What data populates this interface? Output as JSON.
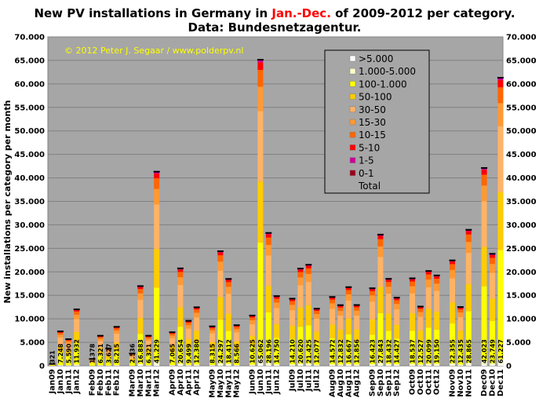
{
  "chart_data": {
    "type": "bar",
    "title_parts": [
      "New PV installations in Germany in ",
      "Jan.-Dec.",
      " of 2009-2012 per category."
    ],
    "subtitle": "Data: Bundesnetzagentur.",
    "ylabel": "New installations per category per month",
    "copyright": "© 2012 Peter J. Segaar / www.polderpv.nl",
    "ylim": [
      0,
      70000
    ],
    "y_ticks": [
      "0",
      "5.000",
      "10.000",
      "15.000",
      "20.000",
      "25.000",
      "30.000",
      "35.000",
      "40.000",
      "45.000",
      "50.000",
      "55.000",
      "60.000",
      "65.000",
      "70.000"
    ],
    "grid": true,
    "stacked": true,
    "legend_position": "top-right",
    "colors": {
      "plot_bg": "#a6a6a6",
      "title_highlight": "#ff0000",
      "categories": [
        "#ffffff",
        "#ffffcc",
        "#ffff00",
        "#ffcc00",
        "#ffb366",
        "#ff9933",
        "#ff6600",
        "#ff0000",
        "#cc0099",
        "#99001a",
        "#000000"
      ]
    },
    "legend": [
      ">5.000",
      "1.000-5.000",
      "100-1.000",
      "50-100",
      "30-50",
      "15-30",
      "10-15",
      "5-10",
      "1-5",
      "0-1",
      "Total"
    ],
    "series_names_bottom_up": [
      "0-1",
      "1-5",
      "5-10",
      "10-15",
      "15-30",
      "30-50",
      "50-100",
      "100-1.000",
      "1.000-5.000",
      ">5.000"
    ],
    "fractions": [
      0.005,
      0.018,
      0.38,
      0.2,
      0.23,
      0.08,
      0.055,
      0.025,
      0.006,
      0.001
    ],
    "groups": [
      {
        "bars": [
          {
            "label": "Jan09",
            "total": 321
          },
          {
            "label": "Jan10",
            "total": 7248
          },
          {
            "label": "Jan11",
            "total": 5590
          },
          {
            "label": "Jan12",
            "total": 11932
          }
        ]
      },
      {
        "bars": [
          {
            "label": "Feb09",
            "total": 1378
          },
          {
            "label": "Feb10",
            "total": 6321
          },
          {
            "label": "Feb11",
            "total": 3627
          },
          {
            "label": "Feb12",
            "total": 8215
          }
        ]
      },
      {
        "bars": [
          {
            "label": "Mar09",
            "total": 2536
          },
          {
            "label": "Mar10",
            "total": 16883
          },
          {
            "label": "Mar11",
            "total": 6321
          },
          {
            "label": "Mar12",
            "total": 41229
          }
        ]
      },
      {
        "bars": [
          {
            "label": "Apr09",
            "total": 7065
          },
          {
            "label": "Apr10",
            "total": 20654
          },
          {
            "label": "Apr11",
            "total": 9499
          },
          {
            "label": "Apr12",
            "total": 12380
          }
        ]
      },
      {
        "bars": [
          {
            "label": "May09",
            "total": 8315
          },
          {
            "label": "May10",
            "total": 24297
          },
          {
            "label": "May11",
            "total": 18412
          },
          {
            "label": "May12",
            "total": 8566
          }
        ]
      },
      {
        "bars": [
          {
            "label": "Jun09",
            "total": 10625
          },
          {
            "label": "Jun10",
            "total": 65062
          },
          {
            "label": "Jun11",
            "total": 28196
          },
          {
            "label": "Jun12",
            "total": 14750
          }
        ]
      },
      {
        "bars": [
          {
            "label": "Jul09",
            "total": 14210
          },
          {
            "label": "Jul10",
            "total": 20620
          },
          {
            "label": "Jul11",
            "total": 21425
          },
          {
            "label": "Jul12",
            "total": 12077
          }
        ]
      },
      {
        "bars": [
          {
            "label": "Aug09",
            "total": 14572
          },
          {
            "label": "Aug10",
            "total": 12832
          },
          {
            "label": "Aug11",
            "total": 16667
          },
          {
            "label": "Aug12",
            "total": 12856
          }
        ]
      },
      {
        "bars": [
          {
            "label": "Sep09",
            "total": 16423
          },
          {
            "label": "Sep10",
            "total": 27843
          },
          {
            "label": "Sep11",
            "total": 18432
          },
          {
            "label": "Sep12",
            "total": 14427
          }
        ]
      },
      {
        "bars": [
          {
            "label": "Oct09",
            "total": 18537
          },
          {
            "label": "Oct10",
            "total": 12527
          },
          {
            "label": "Oct11",
            "total": 20099
          },
          {
            "label": "Oct12",
            "total": 19150
          }
        ]
      },
      {
        "bars": [
          {
            "label": "Nov09",
            "total": 22355
          },
          {
            "label": "Nov10",
            "total": 12435
          },
          {
            "label": "Nov11",
            "total": 28865
          }
        ]
      },
      {
        "bars": [
          {
            "label": "Dec09",
            "total": 42023
          },
          {
            "label": "Dec10",
            "total": 23749
          },
          {
            "label": "Dec11",
            "total": 61227
          }
        ]
      }
    ]
  }
}
